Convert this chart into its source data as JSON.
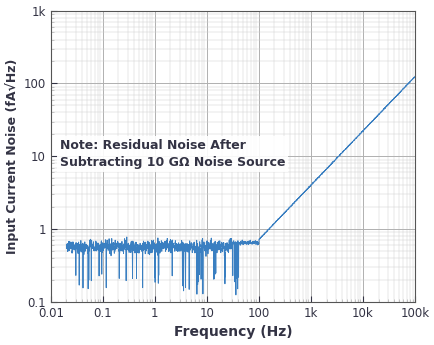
{
  "xlabel": "Frequency (Hz)",
  "ylabel": "Input Current Noise (fA√Hz)",
  "note_line1": "Note: Residual Noise After",
  "note_line2": "Subtracting 10 GΩ Noise Source",
  "line_color": "#3a7fc1",
  "bg_color": "#ffffff",
  "grid_major_color": "#b0b0b0",
  "grid_minor_color": "#d0d0d0",
  "tick_color": "#333344",
  "xlabel_fontsize": 10,
  "ylabel_fontsize": 9,
  "note_fontsize": 9,
  "tick_fontsize": 8.5,
  "seed": 7,
  "xmin": 0.01,
  "xmax": 100000,
  "ymin": 0.1,
  "ymax": 1000
}
